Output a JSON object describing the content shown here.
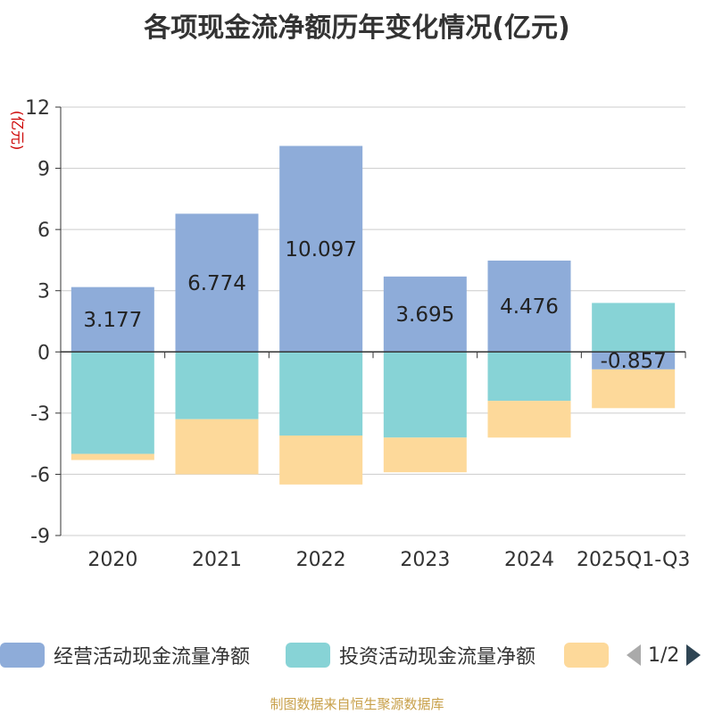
{
  "chart_data": {
    "type": "bar",
    "title": "各项现金流净额历年变化情况(亿元)",
    "ylabel": "(亿元)",
    "categories": [
      "2020",
      "2021",
      "2022",
      "2023",
      "2024",
      "2025Q1-Q3"
    ],
    "ylim": [
      -9,
      12
    ],
    "yticks": [
      12,
      9,
      6,
      3,
      0,
      -3,
      -6,
      -9
    ],
    "stacked": true,
    "series": [
      {
        "name": "经营活动现金流量净额",
        "color": "#8eacd9",
        "values": [
          3.177,
          6.774,
          10.097,
          3.695,
          4.476,
          -0.857
        ]
      },
      {
        "name": "投资活动现金流量净额",
        "color": "#87d3d6",
        "values": [
          -5.0,
          -3.3,
          -4.1,
          -4.2,
          -2.4,
          2.4
        ]
      },
      {
        "name": "",
        "color": "#fdd99a",
        "values": [
          -0.3,
          -2.7,
          -2.4,
          -1.7,
          -1.8,
          -1.9
        ]
      }
    ],
    "data_labels": [
      "3.177",
      "6.774",
      "10.097",
      "3.695",
      "4.476",
      "-0.857"
    ]
  },
  "legend": {
    "items": [
      "经营活动现金流量净额",
      "投资活动现金流量净额",
      ""
    ],
    "page": "1/2"
  },
  "source": "制图数据来自恒生聚源数据库"
}
